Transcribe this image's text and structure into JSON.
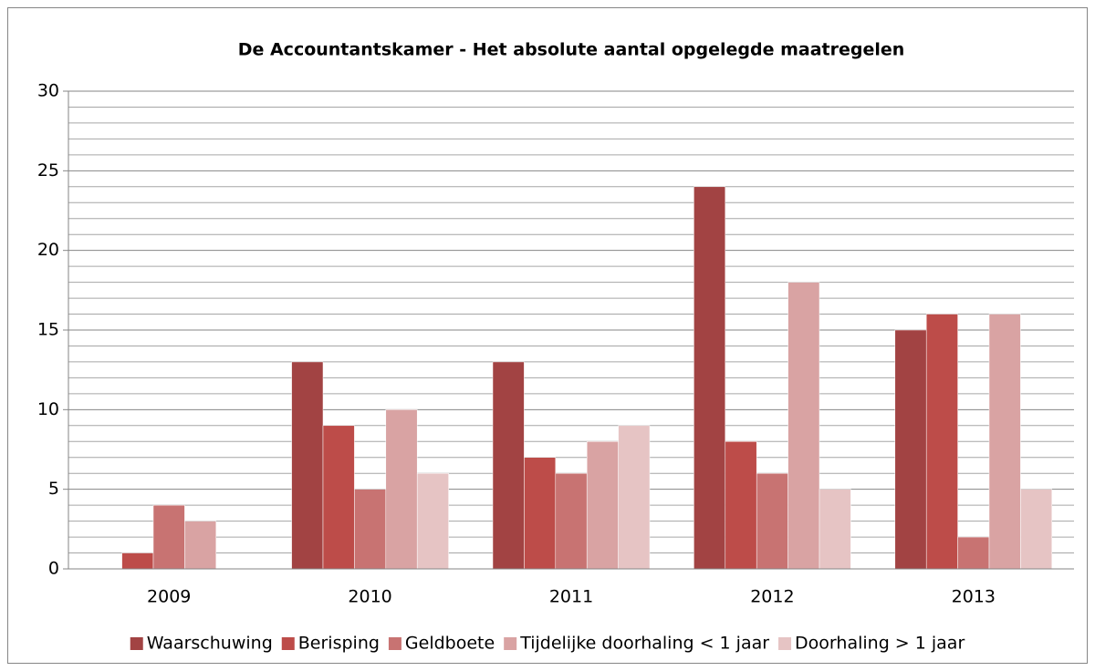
{
  "chart_data": {
    "type": "bar",
    "title": "De Accountantskamer - Het absolute aantal opgelegde maatregelen",
    "categories": [
      "2009",
      "2010",
      "2011",
      "2012",
      "2013"
    ],
    "series": [
      {
        "name": "Waarschuwing",
        "color": "#a24343",
        "values": [
          0,
          13,
          13,
          24,
          15
        ]
      },
      {
        "name": "Berisping",
        "color": "#bd4c49",
        "values": [
          1,
          9,
          7,
          8,
          16
        ]
      },
      {
        "name": "Geldboete",
        "color": "#c87372",
        "values": [
          4,
          5,
          6,
          6,
          2
        ]
      },
      {
        "name": "Tijdelijke doorhaling < 1 jaar",
        "color": "#d9a3a3",
        "values": [
          3,
          10,
          8,
          18,
          16
        ]
      },
      {
        "name": "Doorhaling > 1 jaar",
        "color": "#e6c4c4",
        "values": [
          0,
          6,
          9,
          5,
          5
        ]
      }
    ],
    "ylim": [
      0,
      30
    ],
    "yticks": [
      0,
      5,
      10,
      15,
      20,
      25,
      30
    ],
    "yminorticks": [
      1,
      2,
      3,
      4,
      6,
      7,
      8,
      9,
      11,
      12,
      13,
      14,
      16,
      17,
      18,
      19,
      21,
      22,
      23,
      24,
      26,
      27,
      28,
      29
    ],
    "grid": true,
    "legend": "bottom"
  }
}
